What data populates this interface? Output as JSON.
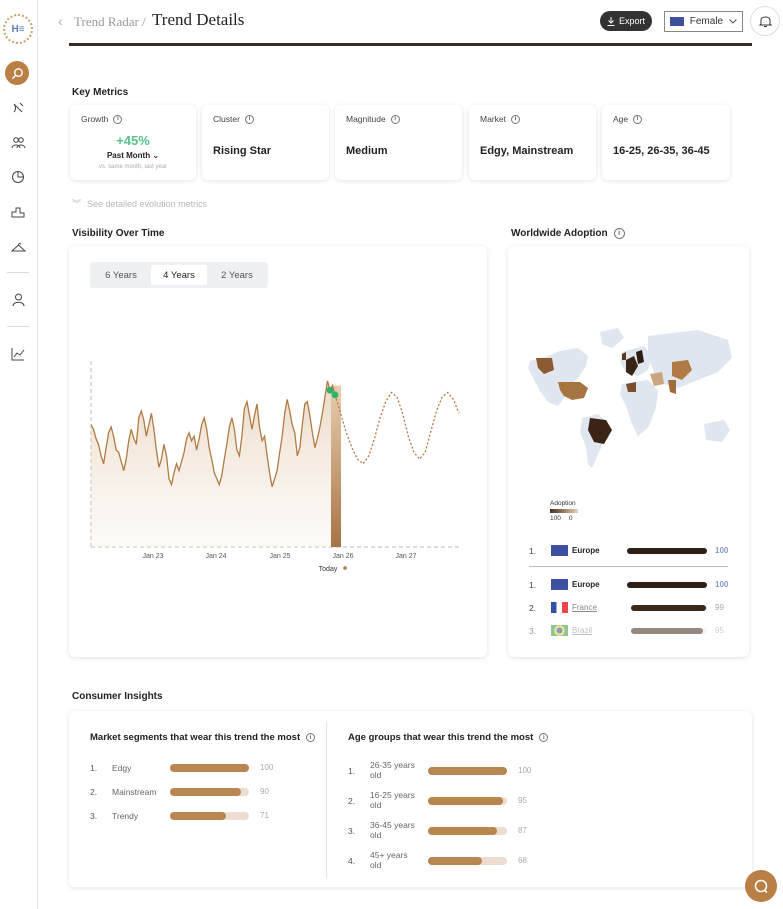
{
  "app": {
    "logo_text": "H≡"
  },
  "header": {
    "parent": "Trend Radar /",
    "title": "Trend Details",
    "export_label": "Export",
    "gender": "Female"
  },
  "key_metrics": {
    "title": "Key Metrics",
    "growth": {
      "label": "Growth",
      "value": "+45%",
      "period": "Past Month",
      "note": "vs. same month, last year"
    },
    "cluster": {
      "label": "Cluster",
      "value": "Rising Star"
    },
    "magnitude": {
      "label": "Magnitude",
      "value": "Medium"
    },
    "market": {
      "label": "Market",
      "value": "Edgy, Mainstream"
    },
    "age": {
      "label": "Age",
      "value": "16-25, 26-35, 36-45"
    },
    "evolution_link": "See detailed evolution metrics"
  },
  "visibility": {
    "title": "Visibility Over Time",
    "tabs": [
      "6 Years",
      "4 Years",
      "2 Years"
    ],
    "active_tab": "4 Years",
    "today_label": "Today"
  },
  "chart_data": {
    "type": "line",
    "x_tick_labels": [
      "Jan 23",
      "Jan 24",
      "Jan 25",
      "Jan 26",
      "Jan 27"
    ],
    "series": [
      {
        "values": [
          0.62,
          0.58,
          0.5,
          0.45,
          0.35,
          0.28,
          0.42,
          0.55,
          0.6,
          0.52,
          0.4,
          0.38,
          0.3,
          0.22,
          0.32,
          0.48,
          0.58,
          0.5,
          0.45,
          0.68,
          0.74,
          0.66,
          0.52,
          0.62,
          0.72,
          0.58,
          0.4,
          0.25,
          0.32,
          0.45,
          0.35,
          0.15,
          0.1,
          0.2,
          0.28,
          0.22,
          0.3,
          0.38,
          0.5,
          0.55,
          0.48,
          0.52,
          0.4,
          0.5,
          0.62,
          0.68,
          0.58,
          0.42,
          0.32,
          0.2,
          0.15,
          0.1,
          0.18,
          0.32,
          0.45,
          0.6,
          0.68,
          0.58,
          0.4,
          0.35,
          0.52,
          0.76,
          0.82,
          0.7,
          0.58,
          0.7,
          0.8,
          0.6,
          0.48,
          0.52,
          0.35,
          0.2,
          0.08,
          0.15,
          0.22,
          0.38,
          0.52,
          0.72,
          0.84,
          0.74,
          0.62,
          0.55,
          0.35,
          0.42,
          0.62,
          0.8,
          0.82,
          0.7,
          0.55,
          0.42,
          0.5,
          0.6,
          0.72,
          0.86,
          1.0,
          0.92,
          0.96,
          0.88
        ]
      },
      {
        "values": [
          0.88,
          0.72,
          0.55,
          0.42,
          0.32,
          0.28,
          0.35,
          0.5,
          0.68,
          0.82,
          0.9,
          0.86,
          0.72,
          0.52,
          0.38,
          0.32,
          0.38,
          0.56,
          0.74,
          0.86,
          0.9,
          0.84,
          0.72
        ]
      }
    ]
  },
  "adoption": {
    "title": "Worldwide Adoption",
    "legend_title": "Adoption",
    "legend_max": "100",
    "legend_min": "0",
    "top": {
      "rank": "1.",
      "name": "Europe",
      "value": "100",
      "pct": 1.0
    },
    "rows": [
      {
        "rank": "1.",
        "name": "Europe",
        "value": "100",
        "pct": 1.0
      },
      {
        "rank": "2.",
        "name": "France",
        "value": "99",
        "pct": 0.99
      },
      {
        "rank": "3.",
        "name": "Brazil",
        "value": "95",
        "pct": 0.95
      }
    ]
  },
  "consumer": {
    "title": "Consumer Insights",
    "segments_title": "Market segments that wear this trend the most",
    "segments": [
      {
        "rank": "1.",
        "label": "Edgy",
        "value": "100",
        "pct": 1.0
      },
      {
        "rank": "2.",
        "label": "Mainstream",
        "value": "90",
        "pct": 0.9
      },
      {
        "rank": "3.",
        "label": "Trendy",
        "value": "71",
        "pct": 0.71
      }
    ],
    "ages_title": "Age groups that wear this trend the most",
    "ages": [
      {
        "rank": "1.",
        "label": "26-35 years old",
        "value": "100",
        "pct": 1.0
      },
      {
        "rank": "2.",
        "label": "16-25 years old",
        "value": "95",
        "pct": 0.95
      },
      {
        "rank": "3.",
        "label": "36-45 years old",
        "value": "87",
        "pct": 0.87
      },
      {
        "rank": "4.",
        "label": "45+ years old",
        "value": "68",
        "pct": 0.68
      }
    ]
  }
}
